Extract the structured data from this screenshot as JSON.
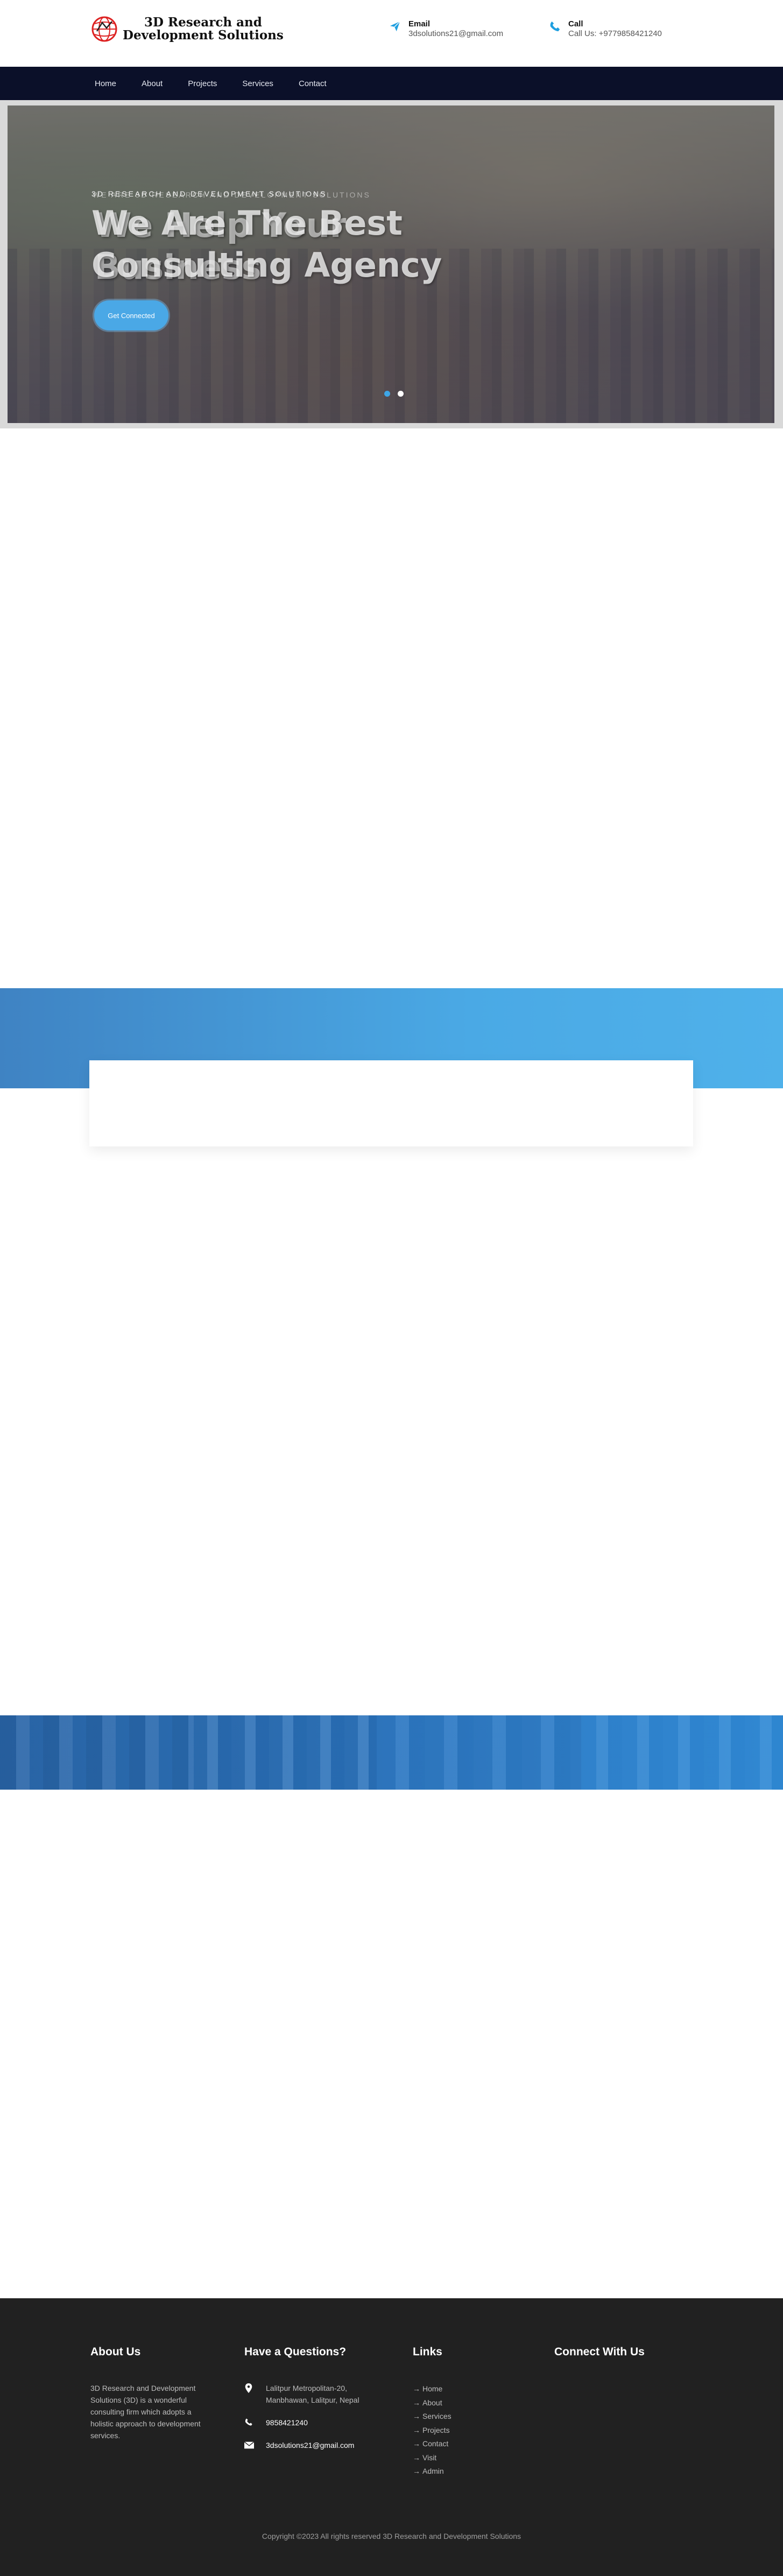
{
  "header": {
    "logo_text_line1": "3D Research and",
    "logo_text_line2": "Development Solutions",
    "email": {
      "title": "Email",
      "value": "3dsolutions21@gmail.com",
      "icon": "paper-plane-icon"
    },
    "call": {
      "title": "Call",
      "value": "Call Us: +9779858421240",
      "icon": "phone-icon"
    }
  },
  "nav": {
    "items": [
      {
        "label": "Home"
      },
      {
        "label": "About"
      },
      {
        "label": "Projects"
      },
      {
        "label": "Services"
      },
      {
        "label": "Contact"
      }
    ]
  },
  "hero": {
    "tag": "3D Research and Development Solutions",
    "tag_ghost": "We are 3D Research and Development Solutions",
    "title_line1": "We Are The Best",
    "title_line2": "Consulting Agency",
    "title2_line1": "We Help Your",
    "title2_line2": "Business",
    "button_label": "Get Connected",
    "slides": 2,
    "active_slide": 1
  },
  "footer": {
    "about": {
      "title": "About Us",
      "text": "3D Research and Development Solutions (3D) is a wonderful consulting firm which adopts a holistic approach to development services."
    },
    "questions": {
      "title": "Have a Questions?",
      "address": "Lalitpur Metropolitan-20, Manbhawan, Lalitpur, Nepal",
      "phone": "9858421240",
      "email": "3dsolutions21@gmail.com"
    },
    "links": {
      "title": "Links",
      "items": [
        "Home",
        "About",
        "Services",
        "Projects",
        "Contact",
        "Visit",
        "Admin"
      ]
    },
    "connect": {
      "title": "Connect With Us"
    },
    "copyright": "Copyright ©2023 All rights reserved 3D Research and Development Solutions"
  },
  "colors": {
    "nav_bg": "#0b1029",
    "accent": "#4aa8e6",
    "footer_bg": "#212121"
  }
}
